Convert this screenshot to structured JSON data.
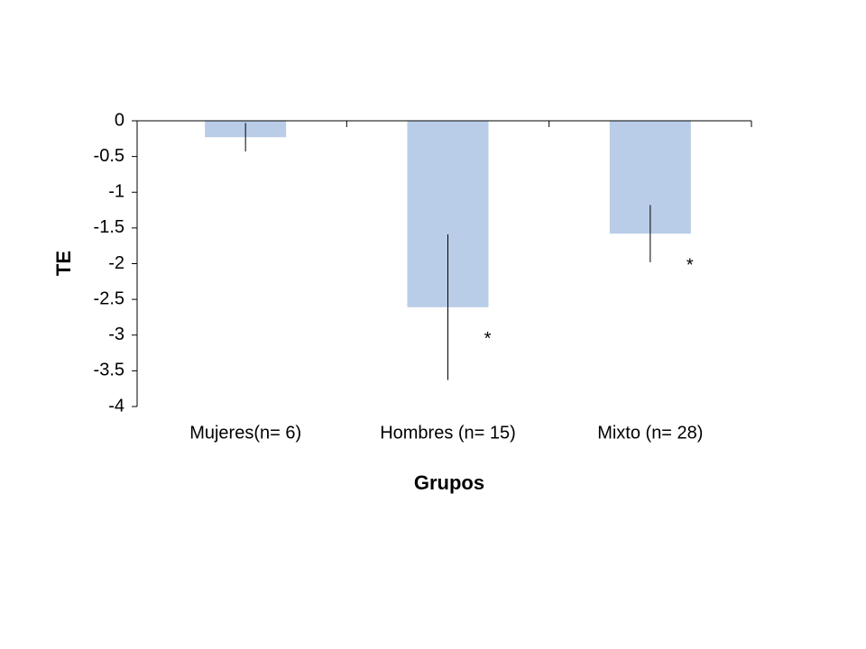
{
  "chart_data": {
    "type": "bar",
    "categories": [
      "Mujeres(n= 6)",
      "Hombres (n= 15)",
      "Mixto (n= 28)"
    ],
    "values": [
      -0.23,
      -2.61,
      -1.58
    ],
    "errors": [
      0.2,
      1.02,
      0.4
    ],
    "significance": [
      null,
      "*",
      "*"
    ],
    "color": "#b9cde8",
    "x_label": "Grupos",
    "y_label": "TE",
    "ylim": [
      -4,
      0
    ],
    "yticks": [
      0,
      -0.5,
      -1,
      -1.5,
      -2,
      -2.5,
      -3,
      -3.5,
      -4
    ]
  }
}
